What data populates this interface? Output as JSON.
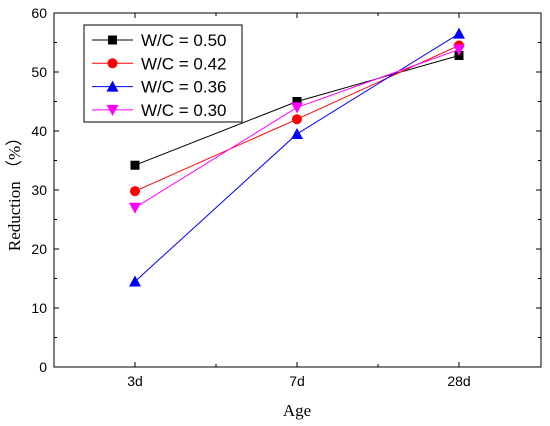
{
  "chart_data": {
    "type": "line",
    "title": "",
    "xlabel": "Age",
    "ylabel": "Reduction （%）",
    "categories": [
      "3d",
      "7d",
      "28d"
    ],
    "ylim": [
      0,
      60
    ],
    "yticks": [
      0,
      10,
      20,
      30,
      40,
      50,
      60
    ],
    "grid": false,
    "legend_position": "top-left",
    "series": [
      {
        "name": "W/C = 0.50",
        "values": [
          34.2,
          45.0,
          52.8
        ],
        "color": "#000000",
        "marker": "square"
      },
      {
        "name": "W/C = 0.42",
        "values": [
          29.8,
          42.0,
          54.5
        ],
        "color": "#ff0000",
        "marker": "circle"
      },
      {
        "name": "W/C = 0.36",
        "values": [
          14.5,
          39.5,
          56.5
        ],
        "color": "#0000ff",
        "marker": "triangle-up"
      },
      {
        "name": "W/C = 0.30",
        "values": [
          27.0,
          44.0,
          53.8
        ],
        "color": "#ff00ff",
        "marker": "triangle-down"
      }
    ]
  }
}
